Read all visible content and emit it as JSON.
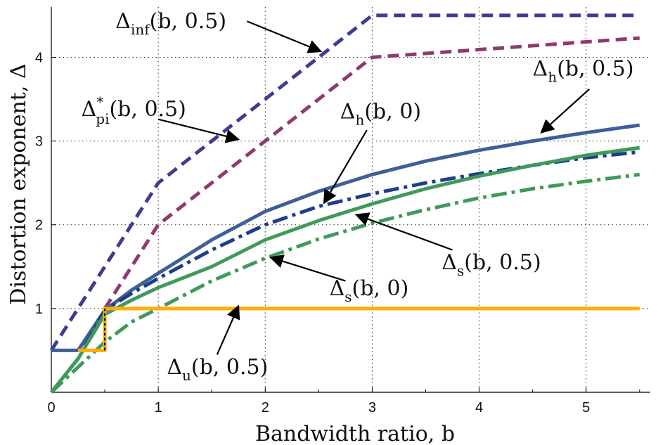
{
  "chart_data": {
    "type": "line",
    "title": "",
    "xlabel": "Bandwidth ratio, b",
    "ylabel": "Distortion exponent, Δ",
    "xlim": [
      0,
      5.6
    ],
    "ylim": [
      0,
      4.6
    ],
    "xticks": [
      0,
      1,
      2,
      3,
      4,
      5
    ],
    "yticks": [
      1,
      2,
      3,
      4
    ],
    "xtick_labels": [
      "0",
      "1",
      "2",
      "3",
      "4",
      "5"
    ],
    "ytick_labels": [
      "1",
      "2",
      "3",
      "4"
    ],
    "grid": true,
    "colors": {
      "inf": "#3d3d8f",
      "pi": "#8f3a6e",
      "h": "#3f5f99",
      "h0": "#1d3f8a",
      "s": "#3f9a5a",
      "u": "#ffae00"
    },
    "series": [
      {
        "key": "inf",
        "style": "dashed",
        "x": [
          0,
          1,
          3,
          5.5
        ],
        "y": [
          0.5,
          2.5,
          4.5,
          4.5
        ]
      },
      {
        "key": "pi",
        "style": "dashed",
        "x": [
          0.5,
          1,
          3,
          5.5
        ],
        "y": [
          1.0,
          2.0,
          4.0,
          4.23
        ]
      },
      {
        "key": "h",
        "style": "solid",
        "x": [
          0,
          0.25,
          0.5,
          0.75,
          1,
          1.5,
          2,
          2.5,
          3,
          3.5,
          4,
          4.5,
          5,
          5.5
        ],
        "y": [
          0.5,
          0.5,
          0.98,
          1.22,
          1.42,
          1.82,
          2.16,
          2.4,
          2.6,
          2.76,
          2.89,
          3.0,
          3.1,
          3.19
        ]
      },
      {
        "key": "h0",
        "style": "dashdot",
        "x": [
          0,
          0.25,
          0.5,
          0.75,
          1,
          1.5,
          2,
          2.5,
          3,
          3.5,
          4,
          4.5,
          5,
          5.5
        ],
        "y": [
          0,
          0.4,
          0.98,
          1.18,
          1.36,
          1.7,
          2.0,
          2.22,
          2.37,
          2.5,
          2.61,
          2.71,
          2.8,
          2.87
        ]
      },
      {
        "key": "s",
        "style": "solid",
        "x": [
          0,
          0.25,
          0.5,
          0.75,
          1,
          1.5,
          2,
          2.5,
          3,
          3.5,
          4,
          4.5,
          5,
          5.5
        ],
        "y": [
          0,
          0.4,
          0.93,
          1.1,
          1.25,
          1.5,
          1.82,
          2.05,
          2.25,
          2.43,
          2.58,
          2.71,
          2.83,
          2.92
        ]
      },
      {
        "key": "s0",
        "style": "dashdot",
        "x": [
          0,
          0.25,
          0.5,
          0.75,
          1,
          1.5,
          2,
          2.5,
          3,
          3.5,
          4,
          4.5,
          5,
          5.5
        ],
        "y": [
          0,
          0.3,
          0.6,
          0.84,
          1.0,
          1.33,
          1.6,
          1.83,
          2.02,
          2.18,
          2.32,
          2.43,
          2.52,
          2.6
        ]
      },
      {
        "key": "u",
        "style": "solid",
        "x": [
          0.25,
          0.5,
          0.5,
          5.5
        ],
        "y": [
          0.5,
          0.5,
          1.0,
          1.0
        ]
      }
    ],
    "annotations": [
      {
        "key": "inf",
        "func": "Δ",
        "sub": "inf",
        "sup": "",
        "args": "(b, 0.5)",
        "x": 0.6,
        "y": 4.35
      },
      {
        "key": "pi",
        "func": "Δ",
        "sub": "pi",
        "sup": "*",
        "args": "(b, 0.5)",
        "x": 0.28,
        "y": 3.3
      },
      {
        "key": "h",
        "func": "Δ",
        "sub": "h",
        "sup": "",
        "args": "(b, 0.5)",
        "x": 4.5,
        "y": 3.78
      },
      {
        "key": "h0",
        "func": "Δ",
        "sub": "h",
        "sup": "",
        "args": "(b, 0)",
        "x": 2.7,
        "y": 3.27
      },
      {
        "key": "s",
        "func": "Δ",
        "sub": "s",
        "sup": "",
        "args": "(b, 0.5)",
        "x": 3.65,
        "y": 1.47
      },
      {
        "key": "s0",
        "func": "Δ",
        "sub": "s",
        "sup": "",
        "args": "(b, 0)",
        "x": 2.6,
        "y": 1.16
      },
      {
        "key": "u",
        "func": "Δ",
        "sub": "u",
        "sup": "",
        "args": "(b, 0.5)",
        "x": 1.08,
        "y": 0.22
      }
    ],
    "arrows": [
      {
        "from": [
          1.83,
          4.43
        ],
        "to": [
          2.52,
          4.07
        ]
      },
      {
        "from": [
          1.0,
          3.26
        ],
        "to": [
          1.75,
          3.02
        ]
      },
      {
        "from": [
          5.03,
          3.62
        ],
        "to": [
          4.58,
          3.1
        ]
      },
      {
        "from": [
          2.95,
          3.13
        ],
        "to": [
          2.55,
          2.26
        ]
      },
      {
        "from": [
          3.75,
          1.7
        ],
        "to": [
          2.85,
          2.12
        ]
      },
      {
        "from": [
          2.75,
          1.33
        ],
        "to": [
          2.05,
          1.61
        ]
      },
      {
        "from": [
          1.55,
          0.45
        ],
        "to": [
          1.75,
          1.03
        ]
      }
    ]
  }
}
